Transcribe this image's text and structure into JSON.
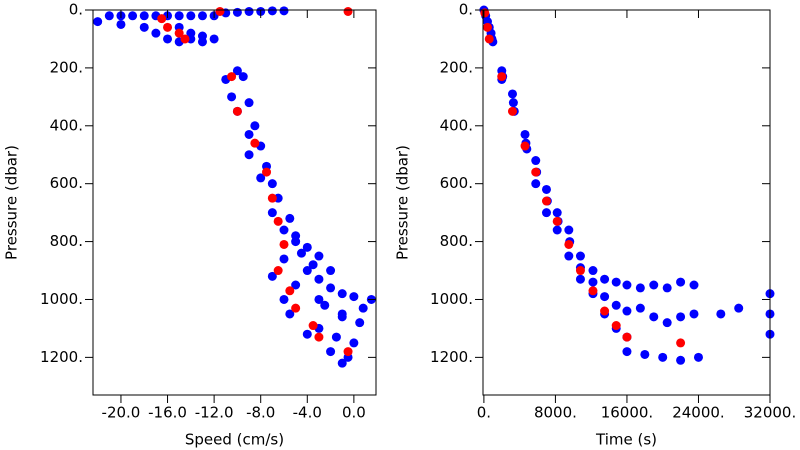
{
  "chart_data": [
    {
      "type": "scatter",
      "x_label": "Speed (cm/s)",
      "y_label": "Pressure (dbar)",
      "xlim": [
        -22.4,
        1.9
      ],
      "ylim": [
        0,
        1330
      ],
      "y_reversed": true,
      "xticks": [
        {
          "value": -20,
          "label": "-20.0"
        },
        {
          "value": -16,
          "label": "-16.0"
        },
        {
          "value": -12,
          "label": "-12.0"
        },
        {
          "value": -8,
          "label": "-8.0"
        },
        {
          "value": -4,
          "label": "-4.0"
        },
        {
          "value": 0,
          "label": "0.0"
        }
      ],
      "yticks": [
        {
          "value": 0,
          "label": "0."
        },
        {
          "value": 200,
          "label": "200."
        },
        {
          "value": 400,
          "label": "400."
        },
        {
          "value": 600,
          "label": "600."
        },
        {
          "value": 800,
          "label": "800."
        },
        {
          "value": 1000,
          "label": "1000."
        },
        {
          "value": 1200,
          "label": "1200."
        }
      ],
      "series": [
        {
          "color": "#0000ff",
          "x": [
            -22,
            -21,
            -20,
            -19,
            -18,
            -17,
            -16,
            -15,
            -14,
            -13,
            -12,
            -20,
            -18,
            -17,
            -15,
            -14,
            -13,
            -12,
            -16,
            -15,
            -14,
            -13,
            -11,
            -10,
            -9,
            -8,
            -7,
            -6,
            -10,
            -9.5,
            -11,
            -10.5,
            -9,
            -10,
            -8.5,
            -9,
            -8,
            -9,
            -7.5,
            -8,
            -7,
            -6.5,
            -7,
            -5.5,
            -6,
            -5,
            -4.5,
            -6,
            -3.5,
            -4,
            -3,
            -5,
            -2,
            -1,
            0,
            1.5,
            -2.5,
            -1,
            0.5,
            -3,
            -1.5,
            0,
            -0.5,
            -2,
            -1,
            -6,
            -7,
            -5.5,
            -4,
            0.8,
            -3,
            -2,
            -4,
            -5,
            -3,
            -1
          ],
          "y": [
            40,
            20,
            20,
            20,
            20,
            20,
            20,
            20,
            20,
            20,
            20,
            50,
            60,
            80,
            60,
            80,
            90,
            100,
            100,
            110,
            100,
            110,
            10,
            8,
            5,
            5,
            3,
            3,
            210,
            230,
            240,
            300,
            320,
            350,
            400,
            430,
            470,
            500,
            540,
            580,
            600,
            650,
            700,
            720,
            760,
            800,
            840,
            860,
            880,
            900,
            930,
            950,
            960,
            980,
            990,
            1000,
            1020,
            1050,
            1080,
            1100,
            1130,
            1150,
            1200,
            1180,
            1220,
            1000,
            920,
            1050,
            1120,
            1030,
            1000,
            900,
            820,
            780,
            850,
            1060
          ]
        },
        {
          "color": "#ff0000",
          "x": [
            -16.5,
            -16,
            -15,
            -14.5,
            -11.5,
            -0.5,
            -10.5,
            -10,
            -8.5,
            -7.5,
            -7,
            -6.5,
            -6,
            -6.5,
            -5.5,
            -5,
            -3.5,
            -3,
            -0.5
          ],
          "y": [
            30,
            60,
            80,
            100,
            5,
            5,
            230,
            350,
            460,
            560,
            650,
            730,
            810,
            900,
            970,
            1030,
            1090,
            1130,
            1180
          ]
        }
      ]
    },
    {
      "type": "scatter",
      "x_label": "Time (s)",
      "y_label": "Pressure (dbar)",
      "xlim": [
        -100,
        32000
      ],
      "ylim": [
        0,
        1330
      ],
      "y_reversed": true,
      "xticks": [
        {
          "value": 0,
          "label": "0."
        },
        {
          "value": 8000,
          "label": "8000."
        },
        {
          "value": 16000,
          "label": "16000."
        },
        {
          "value": 24000,
          "label": "24000."
        },
        {
          "value": 32000,
          "label": "32000."
        }
      ],
      "yticks": [
        {
          "value": 0,
          "label": "0."
        },
        {
          "value": 200,
          "label": "200."
        },
        {
          "value": 400,
          "label": "400."
        },
        {
          "value": 600,
          "label": "600."
        },
        {
          "value": 800,
          "label": "800."
        },
        {
          "value": 1000,
          "label": "1000."
        },
        {
          "value": 1200,
          "label": "1200."
        }
      ],
      "series": [
        {
          "color": "#0000ff",
          "x": [
            0,
            200,
            400,
            600,
            800,
            900,
            1000,
            2000,
            2100,
            2000,
            3200,
            3300,
            3400,
            4600,
            4700,
            4800,
            5800,
            5900,
            5800,
            7000,
            7100,
            7000,
            8200,
            8300,
            8200,
            9500,
            9600,
            9500,
            10800,
            10800,
            10800,
            12200,
            12200,
            12200,
            13500,
            13500,
            13500,
            14800,
            14800,
            14800,
            16000,
            16000,
            16000,
            17500,
            17500,
            19000,
            19000,
            20500,
            20500,
            22000,
            22000,
            23500,
            23500,
            16000,
            18000,
            20000,
            22000,
            24000,
            26500,
            28500,
            32000,
            32000,
            32000
          ],
          "y": [
            0,
            20,
            40,
            60,
            80,
            100,
            110,
            210,
            230,
            240,
            290,
            320,
            350,
            430,
            460,
            480,
            520,
            560,
            600,
            620,
            660,
            700,
            700,
            730,
            760,
            760,
            800,
            850,
            850,
            890,
            930,
            900,
            940,
            980,
            930,
            990,
            1050,
            940,
            1020,
            1100,
            950,
            1040,
            1130,
            960,
            1030,
            950,
            1060,
            960,
            1080,
            940,
            1060,
            950,
            1050,
            1180,
            1190,
            1200,
            1210,
            1200,
            1050,
            1030,
            980,
            1050,
            1120
          ]
        },
        {
          "color": "#ff0000",
          "x": [
            100,
            400,
            600,
            2000,
            3200,
            4600,
            5800,
            7000,
            8200,
            9500,
            10800,
            12200,
            13500,
            14800,
            16000,
            22000
          ],
          "y": [
            10,
            60,
            100,
            230,
            350,
            470,
            560,
            660,
            730,
            810,
            900,
            970,
            1040,
            1090,
            1130,
            1150
          ]
        }
      ]
    }
  ]
}
